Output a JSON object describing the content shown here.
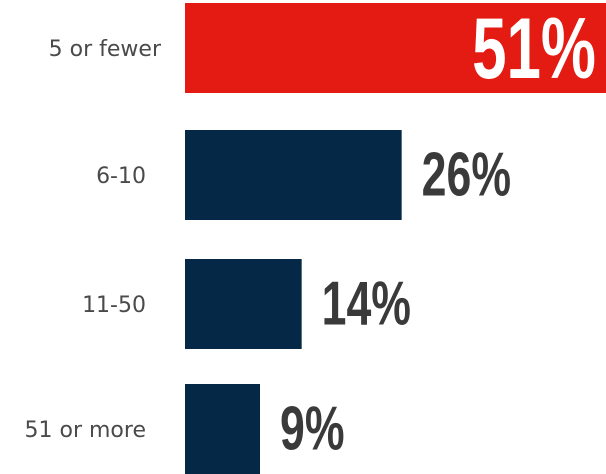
{
  "chart_data": {
    "type": "bar",
    "orientation": "horizontal",
    "categories": [
      "5 or fewer",
      "6-10",
      "11-50",
      "51 or more"
    ],
    "values": [
      51,
      26,
      14,
      9
    ],
    "value_labels": [
      "51%",
      "26%",
      "14%",
      "9%"
    ],
    "unit": "%",
    "xlim": [
      0,
      51
    ],
    "grid": false,
    "bar_colors": [
      "#e31b12",
      "#062847",
      "#062847",
      "#062847"
    ],
    "title": "",
    "xlabel": "",
    "ylabel": ""
  }
}
